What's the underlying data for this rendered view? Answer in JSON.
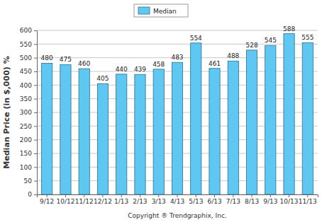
{
  "chart_data": {
    "type": "bar",
    "y_label": "Median Price (in $,000) %",
    "categories": [
      "9/12",
      "10/12",
      "11/12",
      "12/12",
      "1/13",
      "2/13",
      "3/13",
      "4/13",
      "5/13",
      "6/13",
      "7/13",
      "8/13",
      "9/13",
      "10/13",
      "11/13"
    ],
    "series": [
      {
        "name": "Median",
        "color": "#5ec8f2",
        "values": [
          480,
          475,
          460,
          405,
          440,
          439,
          458,
          483,
          554,
          461,
          488,
          528,
          545,
          588,
          555
        ]
      }
    ],
    "ylim": [
      0,
      600
    ],
    "yticks": [
      0,
      50,
      100,
      150,
      200,
      250,
      300,
      350,
      400,
      450,
      500,
      550,
      600
    ],
    "grid": true,
    "legend": "top",
    "data_labels": true,
    "annotations": [
      "Copyright ® Trendgraphix, Inc."
    ]
  }
}
